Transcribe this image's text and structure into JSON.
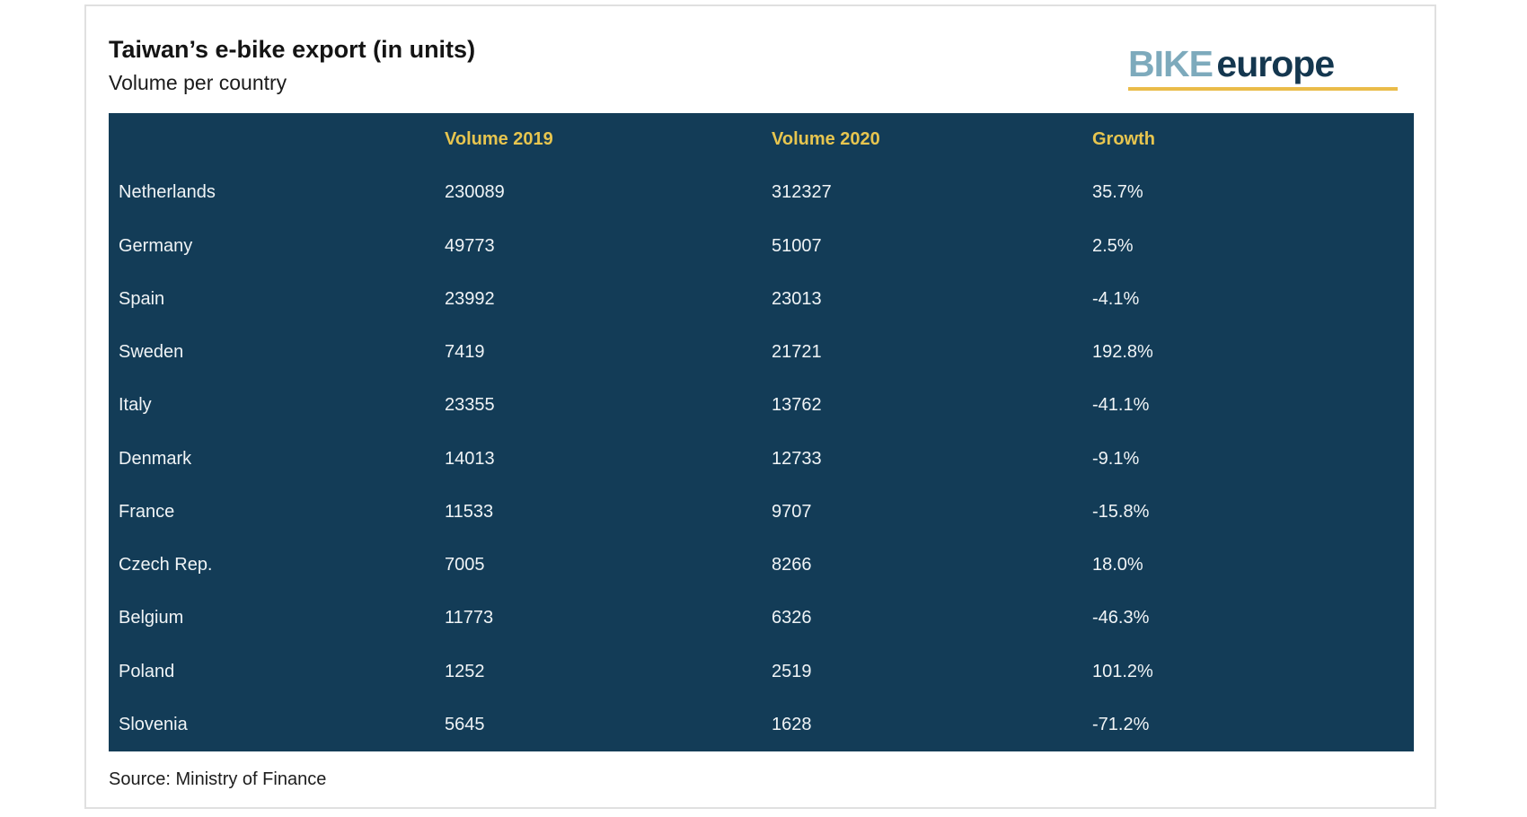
{
  "page": {
    "title": "Taiwan’s e-bike export (in units)",
    "subtitle": "Volume per country",
    "source": "Source: Ministry of Finance"
  },
  "logo": {
    "part1": "BIKE",
    "part2": "europe"
  },
  "colors": {
    "table_bg": "#133c57",
    "header_text": "#e7c54f",
    "body_text": "#f0f4f6",
    "logo_bike": "#7daabc",
    "logo_europe": "#14374f",
    "logo_underline": "#eabc49"
  },
  "chart_data": {
    "type": "table",
    "title": "Taiwan’s e-bike export (in units)",
    "subtitle": "Volume per country",
    "columns": [
      "",
      "Volume 2019",
      "Volume 2020",
      "Growth"
    ],
    "rows": [
      {
        "country": "Netherlands",
        "volume_2019": 230089,
        "volume_2020": 312327,
        "growth": "35.7%"
      },
      {
        "country": "Germany",
        "volume_2019": 49773,
        "volume_2020": 51007,
        "growth": "2.5%"
      },
      {
        "country": "Spain",
        "volume_2019": 23992,
        "volume_2020": 23013,
        "growth": "-4.1%"
      },
      {
        "country": "Sweden",
        "volume_2019": 7419,
        "volume_2020": 21721,
        "growth": "192.8%"
      },
      {
        "country": "Italy",
        "volume_2019": 23355,
        "volume_2020": 13762,
        "growth": "-41.1%"
      },
      {
        "country": "Denmark",
        "volume_2019": 14013,
        "volume_2020": 12733,
        "growth": "-9.1%"
      },
      {
        "country": "France",
        "volume_2019": 11533,
        "volume_2020": 9707,
        "growth": "-15.8%"
      },
      {
        "country": "Czech Rep.",
        "volume_2019": 7005,
        "volume_2020": 8266,
        "growth": "18.0%"
      },
      {
        "country": "Belgium",
        "volume_2019": 11773,
        "volume_2020": 6326,
        "growth": "-46.3%"
      },
      {
        "country": "Poland",
        "volume_2019": 1252,
        "volume_2020": 2519,
        "growth": "101.2%"
      },
      {
        "country": "Slovenia",
        "volume_2019": 5645,
        "volume_2020": 1628,
        "growth": "-71.2%"
      }
    ],
    "source": "Source: Ministry of Finance"
  }
}
